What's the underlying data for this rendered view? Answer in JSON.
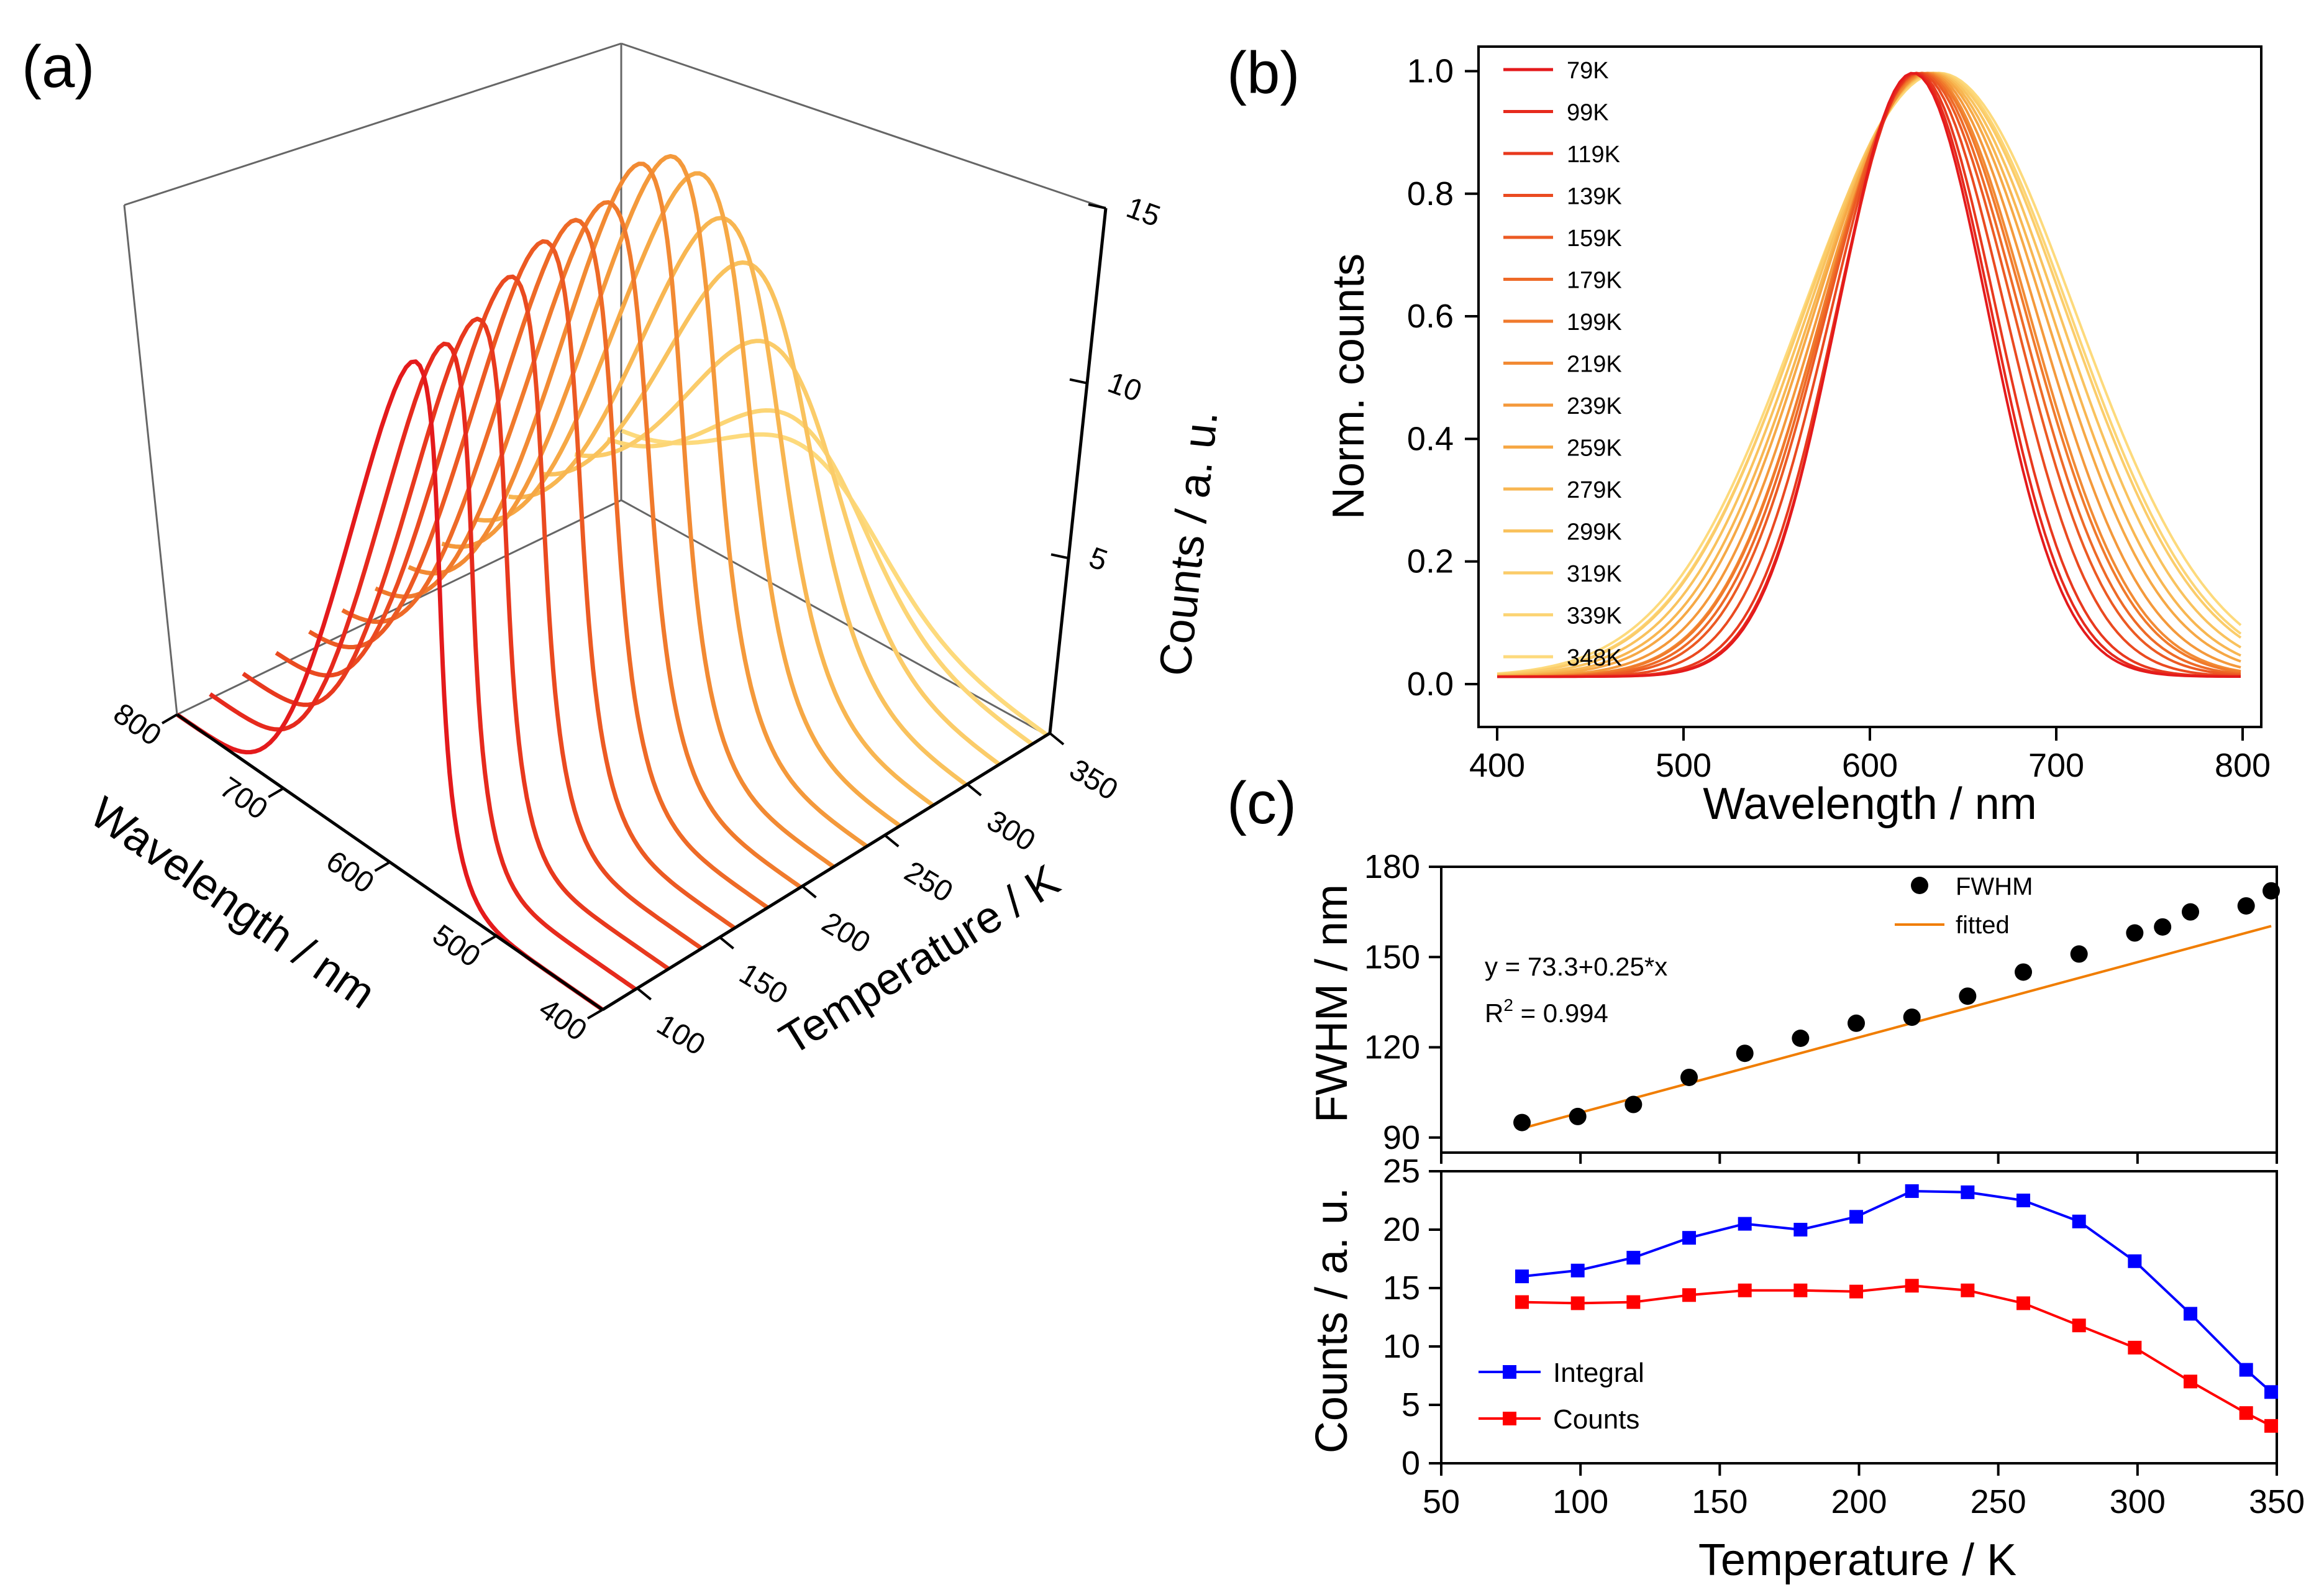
{
  "figure": {
    "panel_labels": [
      "(a)",
      "(b)",
      "(c)"
    ]
  },
  "chart_data": [
    {
      "id": "a",
      "type": "line3d",
      "title": "",
      "xlabel": "Wavelength / nm",
      "ylabel": "Temperature / K",
      "zlabel": "Counts / a. u.",
      "xticks": [
        400,
        500,
        600,
        700,
        800
      ],
      "yticks": [
        100,
        150,
        200,
        250,
        300,
        350
      ],
      "zticks": [
        5,
        10,
        15
      ],
      "xlim": [
        400,
        800
      ],
      "ylim": [
        79,
        350
      ],
      "zlim": [
        0,
        15
      ],
      "temperatures": [
        79,
        99,
        119,
        139,
        159,
        179,
        199,
        219,
        239,
        259,
        279,
        299,
        319,
        339,
        348
      ],
      "peak_counts": [
        13.8,
        13.7,
        13.8,
        14.4,
        14.8,
        14.8,
        14.7,
        15.2,
        14.8,
        13.7,
        11.8,
        9.9,
        7.0,
        4.3,
        3.2
      ],
      "peak_wavelengths_nm": [
        623,
        624,
        625,
        626,
        627,
        628,
        629,
        630,
        631,
        632,
        633,
        634,
        635,
        636,
        637
      ],
      "fwhm_nm": [
        95,
        97,
        101,
        110,
        118,
        123,
        128,
        130,
        137,
        145,
        151,
        158,
        165,
        167,
        172
      ],
      "colors": [
        "#e41a1c",
        "#e62a1d",
        "#e8391e",
        "#ea4a20",
        "#ec5a23",
        "#ee6a27",
        "#f07a2c",
        "#f28a33",
        "#f4993b",
        "#f6a845",
        "#f8b651",
        "#f9c25d",
        "#fbcc69",
        "#fcd575",
        "#fdda7c"
      ]
    },
    {
      "id": "b",
      "type": "line",
      "xlabel": "Wavelength / nm",
      "ylabel": "Norm. counts",
      "xlim": [
        390,
        810
      ],
      "ylim": [
        -0.07,
        1.04
      ],
      "xticks": [
        400,
        500,
        600,
        700,
        800
      ],
      "yticks": [
        0.0,
        0.2,
        0.4,
        0.6,
        0.8,
        1.0
      ],
      "ytick_labels": [
        "0.0",
        "0.2",
        "0.4",
        "0.6",
        "0.8",
        "1.0"
      ],
      "legend": [
        "79K",
        "99K",
        "119K",
        "139K",
        "159K",
        "179K",
        "199K",
        "219K",
        "239K",
        "259K",
        "279K",
        "299K",
        "319K",
        "339K",
        "348K"
      ],
      "legend_position": "top-left",
      "series_note": "normalized Gaussian-like emission spectra, one per temperature"
    },
    {
      "id": "c-top",
      "type": "scatter",
      "xlabel": "",
      "ylabel": "FWHM / nm",
      "xlim": [
        50,
        350
      ],
      "ylim": [
        85,
        180
      ],
      "yticks": [
        90,
        120,
        150,
        180
      ],
      "series": [
        {
          "name": "FWHM",
          "x": [
            79,
            99,
            119,
            139,
            159,
            179,
            199,
            219,
            239,
            259,
            279,
            299,
            309,
            319,
            339,
            348
          ],
          "y": [
            95,
            97,
            101,
            110,
            118,
            123,
            128,
            130,
            137,
            145,
            151,
            158,
            160,
            165,
            167,
            172
          ]
        },
        {
          "name": "fitted",
          "type": "line",
          "intercept": 73.3,
          "slope": 0.25
        }
      ],
      "annotation_eq": "y = 73.3+0.25*x",
      "annotation_r2_prefix": "R",
      "annotation_r2_exp": "2",
      "annotation_r2_value": " = 0.994",
      "legend_position": "top-right"
    },
    {
      "id": "c-bottom",
      "type": "line",
      "xlabel": "Temperature / K",
      "ylabel": "Counts / a. u.",
      "xlim": [
        50,
        350
      ],
      "ylim": [
        0,
        25
      ],
      "xticks": [
        50,
        100,
        150,
        200,
        250,
        300,
        350
      ],
      "yticks": [
        0,
        5,
        10,
        15,
        20,
        25
      ],
      "series": [
        {
          "name": "Integral",
          "color": "#0000ff",
          "x": [
            79,
            99,
            119,
            139,
            159,
            179,
            199,
            219,
            239,
            259,
            279,
            299,
            319,
            339,
            348
          ],
          "y": [
            16.0,
            16.5,
            17.6,
            19.3,
            20.5,
            20.0,
            21.1,
            23.3,
            23.2,
            22.5,
            20.7,
            17.3,
            12.8,
            8.0,
            6.1
          ]
        },
        {
          "name": "Counts",
          "color": "#ff0000",
          "x": [
            79,
            99,
            119,
            139,
            159,
            179,
            199,
            219,
            239,
            259,
            279,
            299,
            319,
            339,
            348
          ],
          "y": [
            13.8,
            13.7,
            13.8,
            14.4,
            14.8,
            14.8,
            14.7,
            15.2,
            14.8,
            13.7,
            11.8,
            9.9,
            7.0,
            4.3,
            3.2
          ]
        }
      ],
      "legend_position": "bottom-left"
    }
  ]
}
